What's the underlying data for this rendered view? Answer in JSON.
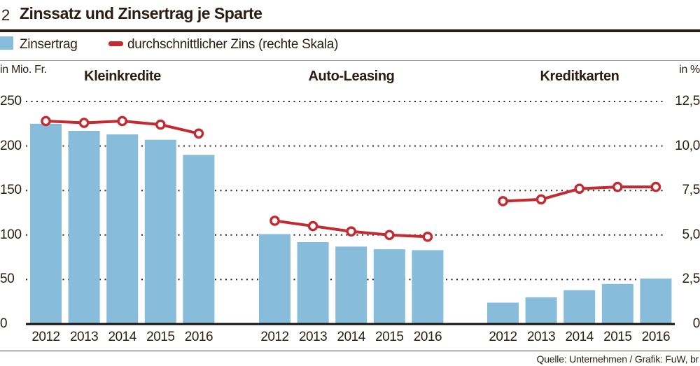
{
  "figure": {
    "number": "2",
    "title": "Zinssatz und Zinsertrag je Sparte",
    "source": "Quelle: Unternehmen / Grafik: FuW, br"
  },
  "legend": {
    "bar_label": "Zinsertrag",
    "line_label": "durchschnittlicher Zins (rechte Skala)"
  },
  "axes": {
    "left_title": "in Mio. Fr.",
    "right_title": "in %",
    "left_ticks": [
      "250",
      "200",
      "150",
      "100",
      "50",
      "0"
    ],
    "right_ticks": [
      "12,5",
      "10,0",
      "7,5",
      "5,0",
      "2,5",
      "0"
    ]
  },
  "colors": {
    "bar": "#87BCDB",
    "line": "#C22B31",
    "text": "#2b1d12"
  },
  "chart_data": {
    "type": "bar",
    "subtype": "grouped bar with overlaid line (dual axis)",
    "categories": [
      "2012",
      "2013",
      "2014",
      "2015",
      "2016"
    ],
    "groups": [
      {
        "name": "Kleinkredite",
        "bars": [
          225,
          217,
          213,
          207,
          190
        ],
        "line": [
          11.4,
          11.3,
          11.4,
          11.2,
          10.7
        ]
      },
      {
        "name": "Auto-Leasing",
        "bars": [
          101,
          92,
          87,
          84,
          83
        ],
        "line": [
          5.8,
          5.5,
          5.2,
          5.0,
          4.9
        ]
      },
      {
        "name": "Kreditkarten",
        "bars": [
          24,
          30,
          38,
          45,
          51
        ],
        "line": [
          6.9,
          7.0,
          7.6,
          7.7,
          7.7
        ]
      }
    ],
    "bar_series_label": "Zinsertrag",
    "line_series_label": "durchschnittlicher Zins (rechte Skala)",
    "left_axis": {
      "label": "in Mio. Fr.",
      "min": 0,
      "max": 250,
      "step": 50
    },
    "right_axis": {
      "label": "in %",
      "min": 0,
      "max": 12.5,
      "step": 2.5
    },
    "grid": "dotted horizontal",
    "legend_position": "top-left"
  }
}
